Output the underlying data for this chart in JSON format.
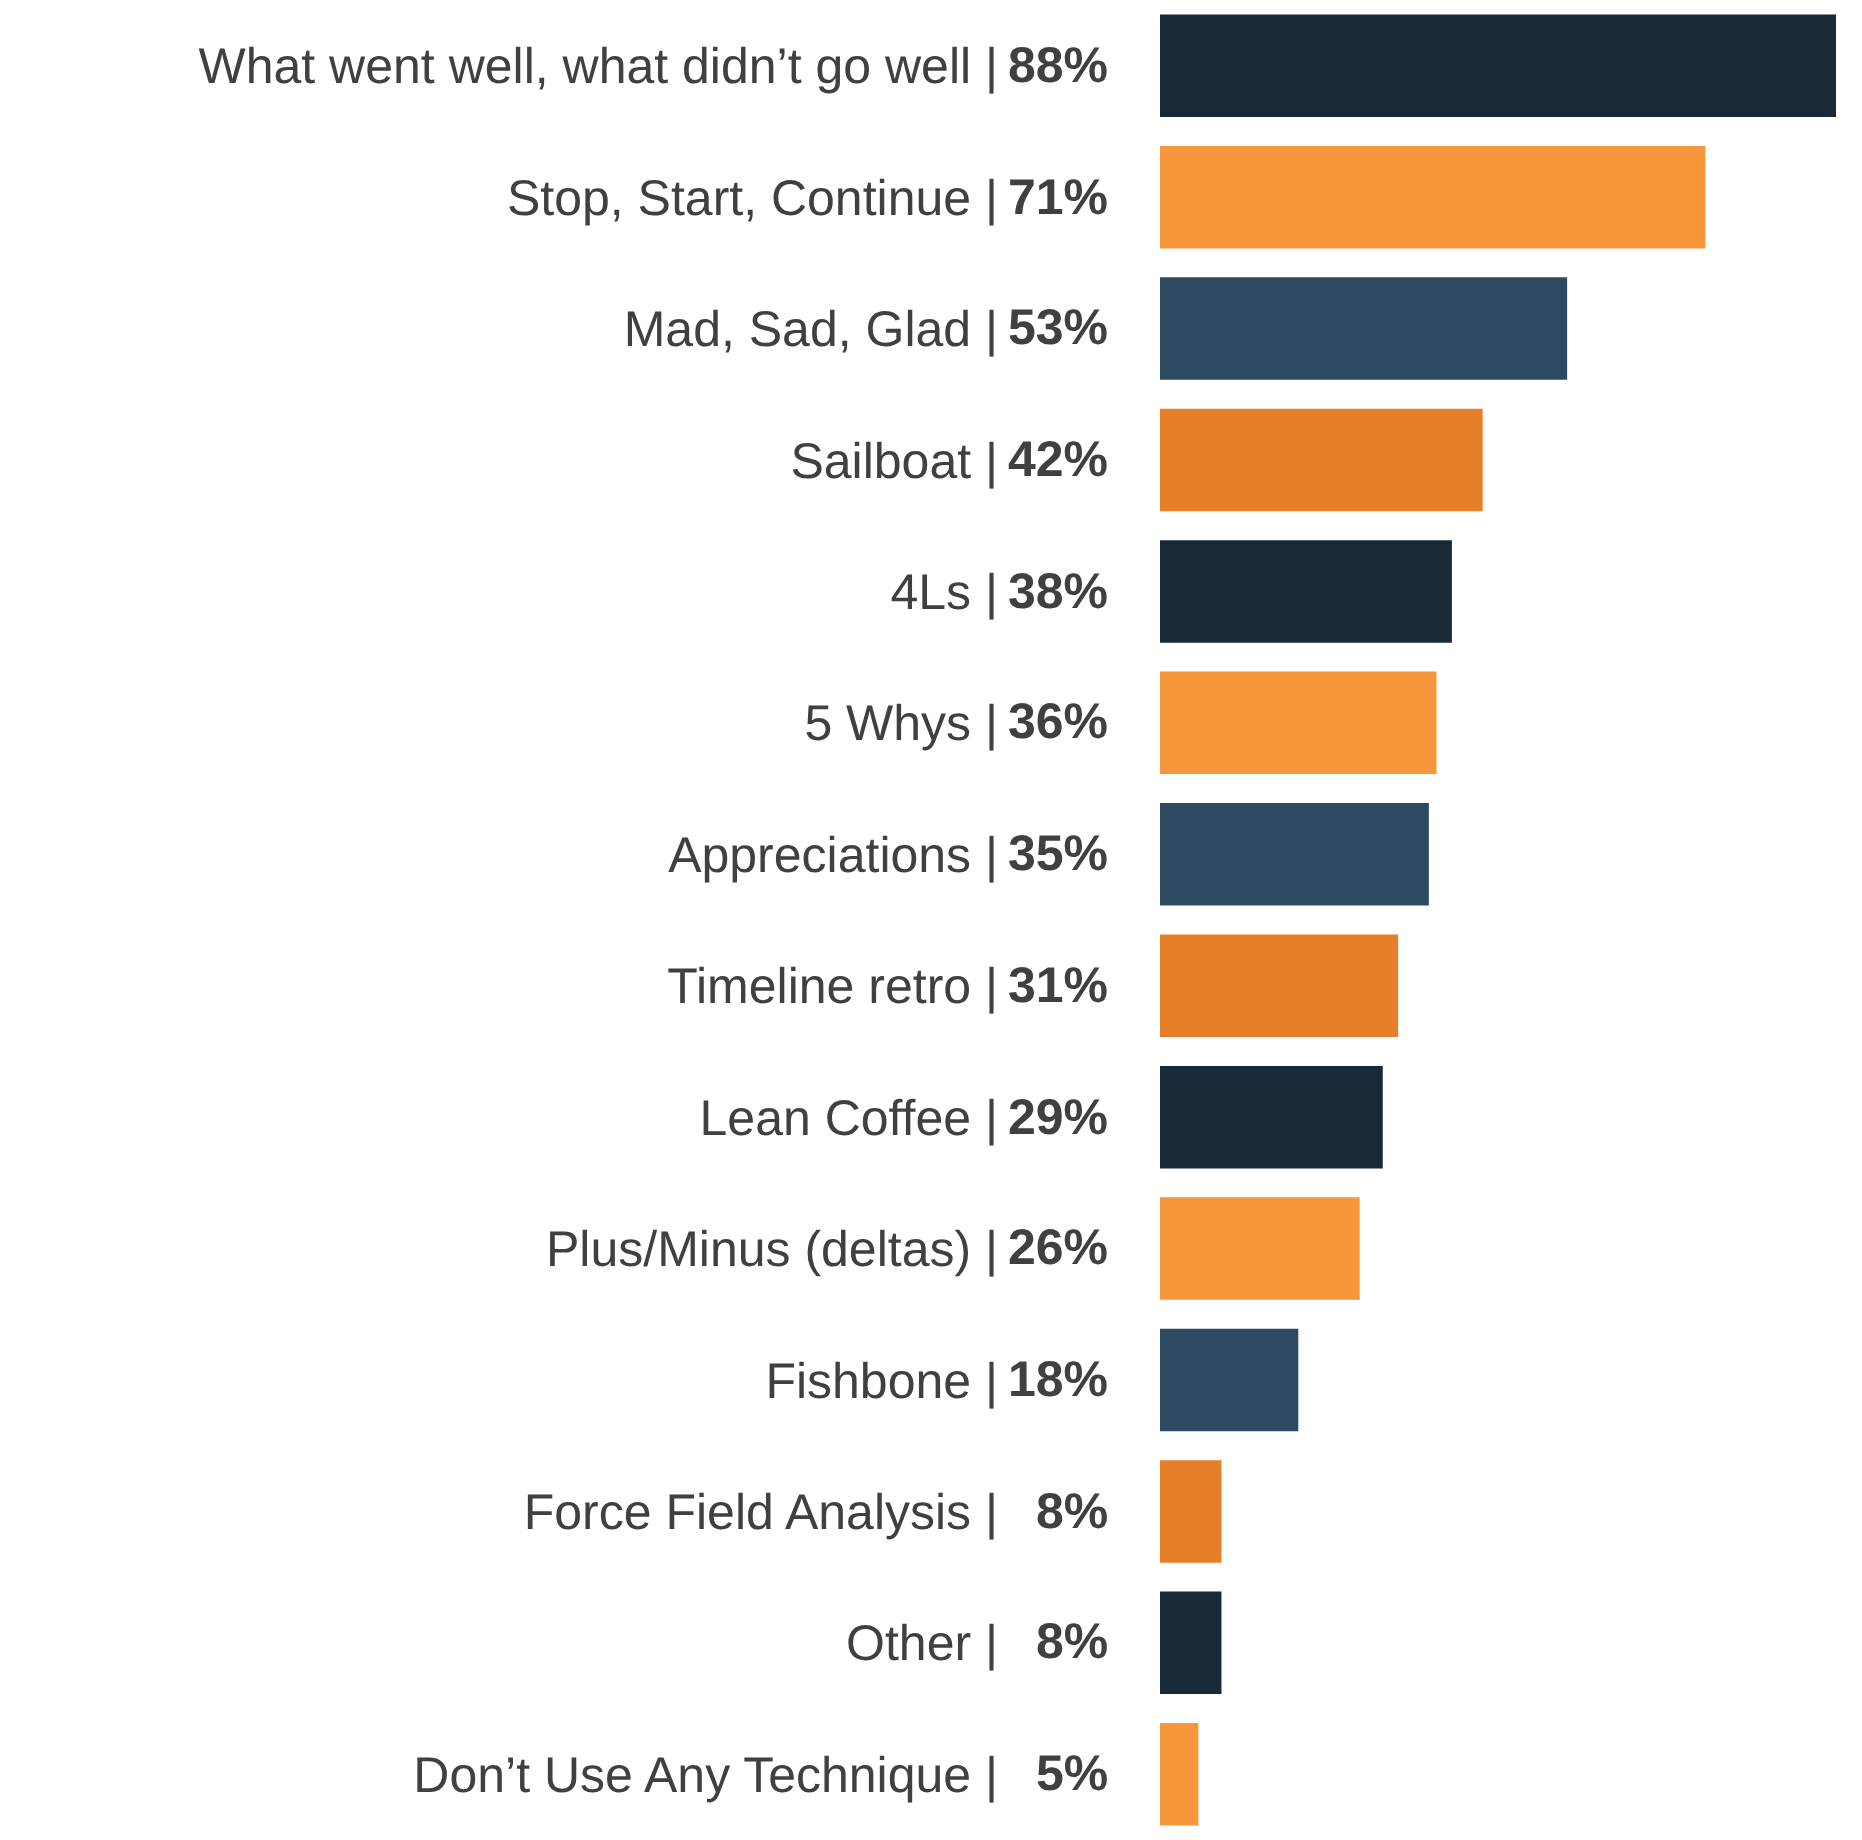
{
  "chart_data": {
    "type": "bar",
    "orientation": "horizontal",
    "categories": [
      "What went well, what didn’t go well |",
      "Stop, Start, Continue |",
      "Mad, Sad, Glad |",
      "Sailboat |",
      "4Ls |",
      "5 Whys |",
      "Appreciations |",
      "Timeline retro |",
      "Lean Coffee |",
      "Plus/Minus (deltas) |",
      "Fishbone |",
      "Force Field Analysis |",
      "Other |",
      "Don’t Use Any Technique |"
    ],
    "values": [
      88,
      71,
      53,
      42,
      38,
      36,
      35,
      31,
      29,
      26,
      18,
      8,
      8,
      5
    ],
    "value_labels": [
      "88%",
      "71%",
      "53%",
      "42%",
      "38%",
      "36%",
      "35%",
      "31%",
      "29%",
      "26%",
      "18%",
      "8%",
      "8%",
      "5%"
    ],
    "colors": [
      "#182a37",
      "#f7963b",
      "#2d4a60",
      "#e57f2a",
      "#182a37",
      "#f7963b",
      "#2d4a60",
      "#e57f2a",
      "#182a37",
      "#f7963b",
      "#2d4a60",
      "#e57f2a",
      "#182a37",
      "#f7963b"
    ],
    "xlim": [
      0,
      88
    ],
    "tick_labels": "y",
    "legend": false
  }
}
